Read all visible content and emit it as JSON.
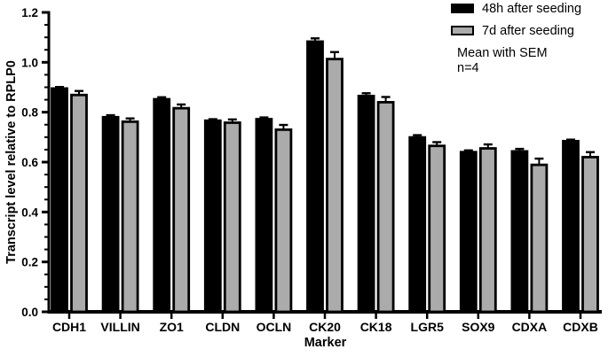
{
  "chart_data": {
    "type": "bar",
    "title": "",
    "xlabel": "Marker",
    "ylabel": "Transcript level relative to RPLP0",
    "ylim": [
      0.0,
      1.2
    ],
    "ytick_interval": 0.2,
    "minor_tick_interval": 0.05,
    "grid": false,
    "legend_position": "top-right",
    "error_bar_type": "SEM",
    "categories": [
      "CDH1",
      "VILLIN",
      "ZO1",
      "CLDN",
      "OCLN",
      "CK20",
      "CK18",
      "LGR5",
      "SOX9",
      "CDXA",
      "CDXB"
    ],
    "series": [
      {
        "name": "48h after seeding",
        "color": "#000000",
        "values": [
          0.895,
          0.78,
          0.852,
          0.766,
          0.772,
          1.083,
          0.865,
          0.699,
          0.64,
          0.643,
          0.684
        ],
        "sem": [
          0.006,
          0.008,
          0.008,
          0.006,
          0.007,
          0.013,
          0.011,
          0.009,
          0.007,
          0.01,
          0.006
        ]
      },
      {
        "name": "7d after seeding",
        "color": "#ABABAB",
        "values": [
          0.869,
          0.762,
          0.816,
          0.758,
          0.73,
          1.013,
          0.84,
          0.665,
          0.655,
          0.589,
          0.62
        ],
        "sem": [
          0.016,
          0.013,
          0.015,
          0.013,
          0.019,
          0.028,
          0.021,
          0.015,
          0.016,
          0.025,
          0.02
        ]
      }
    ],
    "annotations": [
      "Mean with SEM",
      "n=4"
    ]
  },
  "legend": {
    "note_line1": "Mean with SEM",
    "note_line2": "n=4"
  },
  "colors": {
    "bar_48h": "#000000",
    "bar_7d": "#ABABAB",
    "outline": "#000000",
    "text": "#000000",
    "background": "#FFFFFF"
  }
}
